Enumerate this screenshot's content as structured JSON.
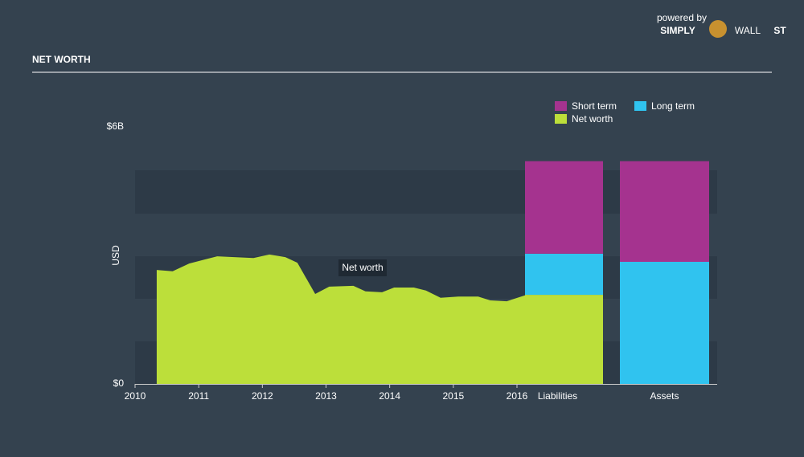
{
  "header": {
    "title": "NET WORTH",
    "logo": {
      "powered": "powered by",
      "simply": "SIMPLY",
      "wall": "WALL",
      "st": "ST"
    }
  },
  "chart_data": {
    "type": "area",
    "y_label": "USD",
    "annotation": "Net worth",
    "color": "#bcdf3a",
    "x": [
      2010.34,
      2010.59,
      2010.85,
      2011.29,
      2011.86,
      2012.11,
      2012.36,
      2012.55,
      2012.68,
      2012.83,
      2013.05,
      2013.43,
      2013.62,
      2013.88,
      2014.07,
      2014.38,
      2014.57,
      2014.8,
      2015.08,
      2015.39,
      2015.58,
      2015.84,
      2016.15
    ],
    "values": [
      2.66,
      2.63,
      2.81,
      2.98,
      2.94,
      3.02,
      2.96,
      2.83,
      2.49,
      2.1,
      2.27,
      2.29,
      2.16,
      2.14,
      2.25,
      2.25,
      2.18,
      2.01,
      2.04,
      2.04,
      1.95,
      1.93,
      2.08
    ],
    "xlim": [
      2010,
      2016
    ],
    "xticks": [
      2010,
      2011,
      2012,
      2013,
      2014,
      2015,
      2016
    ],
    "ylim": [
      0,
      6
    ],
    "yticks": [
      {
        "value": 0,
        "label": "$0"
      },
      {
        "value": 6,
        "label": "$6B"
      }
    ],
    "bars": {
      "categories": [
        "Liabilities",
        "Assets"
      ],
      "series": [
        {
          "name": "Net worth",
          "color": "#bcdf3a",
          "values": [
            2.08,
            null
          ]
        },
        {
          "name": "Long term",
          "color": "#30c3ef",
          "values": [
            0.96,
            2.85
          ]
        },
        {
          "name": "Short term",
          "color": "#a5338f",
          "values": [
            2.16,
            2.35
          ]
        }
      ]
    }
  }
}
